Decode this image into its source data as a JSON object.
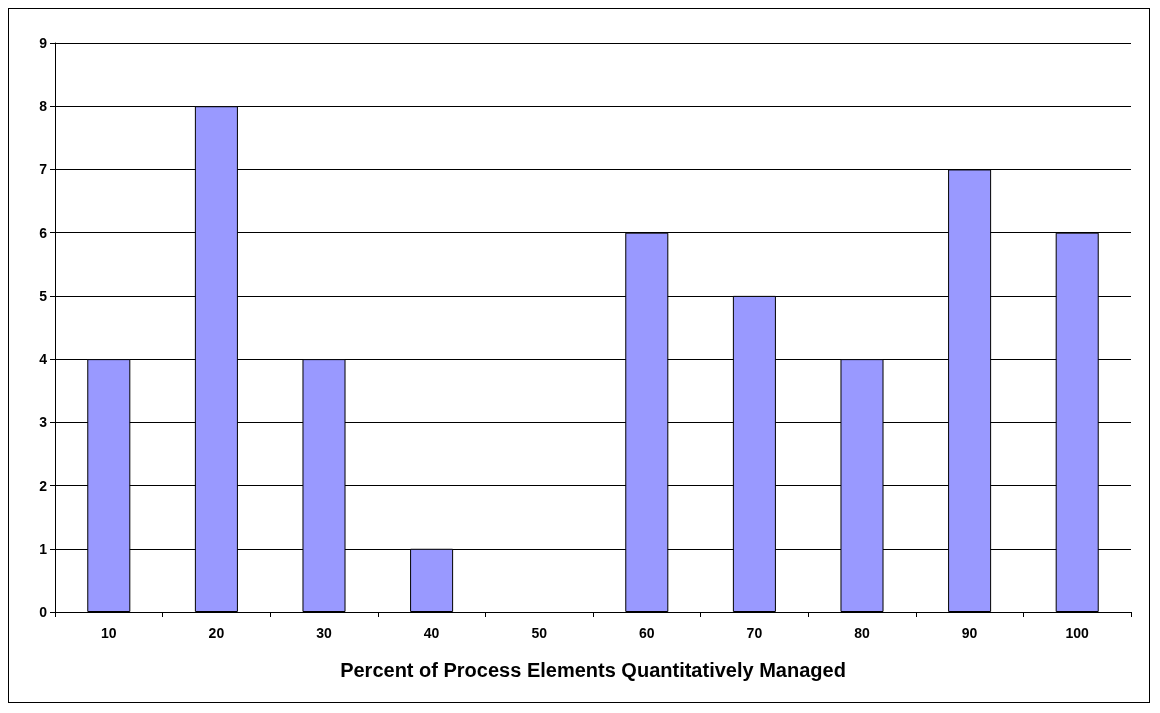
{
  "chart_data": {
    "type": "bar",
    "xlabel": "Percent of Process Elements Quantitatively Managed",
    "categories": [
      "10",
      "20",
      "30",
      "40",
      "50",
      "60",
      "70",
      "80",
      "90",
      "100"
    ],
    "values": [
      4,
      8,
      4,
      1,
      0,
      6,
      5,
      4,
      7,
      6
    ],
    "color": "#9999ff",
    "ylim": [
      0,
      9
    ],
    "yticks": [
      0,
      1,
      2,
      3,
      4,
      5,
      6,
      7,
      8,
      9
    ],
    "grid": "y"
  }
}
